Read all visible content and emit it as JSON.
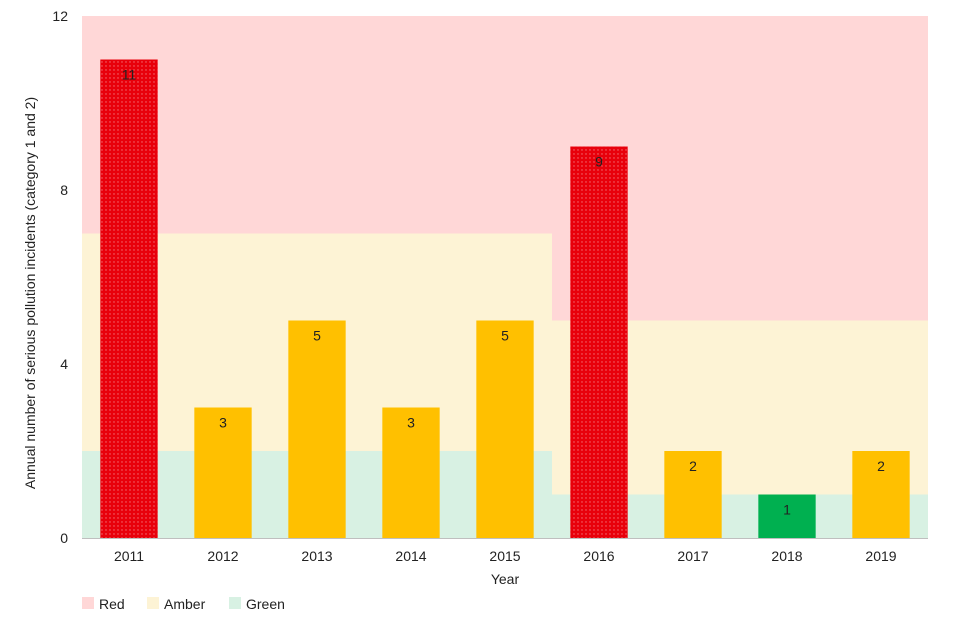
{
  "chart_data": {
    "type": "bar",
    "xlabel": "Year",
    "ylabel": "Annual number of serious pollution incidents (category 1 and 2)",
    "ylim": [
      0,
      12
    ],
    "yticks": [
      0,
      4,
      8,
      12
    ],
    "grid": false,
    "legend_position": "bottom-left",
    "categories": [
      "2011",
      "2012",
      "2013",
      "2014",
      "2015",
      "2016",
      "2017",
      "2018",
      "2019"
    ],
    "values": [
      11,
      3,
      5,
      3,
      5,
      9,
      2,
      1,
      2
    ],
    "value_labels": [
      "11",
      "3",
      "5",
      "3",
      "5",
      "9",
      "2",
      "1",
      "2"
    ],
    "bar_ratings": [
      "Red",
      "Amber",
      "Amber",
      "Amber",
      "Amber",
      "Red",
      "Amber",
      "Green",
      "Amber"
    ],
    "thresholds": [
      {
        "years": [
          "2011",
          "2012",
          "2013",
          "2014",
          "2015"
        ],
        "green_max": 2,
        "amber_max": 7
      },
      {
        "years": [
          "2016",
          "2017",
          "2018",
          "2019"
        ],
        "green_max": 1,
        "amber_max": 5
      }
    ],
    "legend": [
      {
        "label": "Red",
        "color": "#ffd7d7"
      },
      {
        "label": "Amber",
        "color": "#fdf3d5"
      },
      {
        "label": "Green",
        "color": "#d8f1e3"
      }
    ],
    "colors": {
      "red_band": "#ffd7d7",
      "amber_band": "#fdf3d5",
      "green_band": "#d8f1e3",
      "red_bar": "#e8000b",
      "amber_bar": "#ffc000",
      "green_bar": "#00b050",
      "axis": "#bfbfbf"
    }
  }
}
